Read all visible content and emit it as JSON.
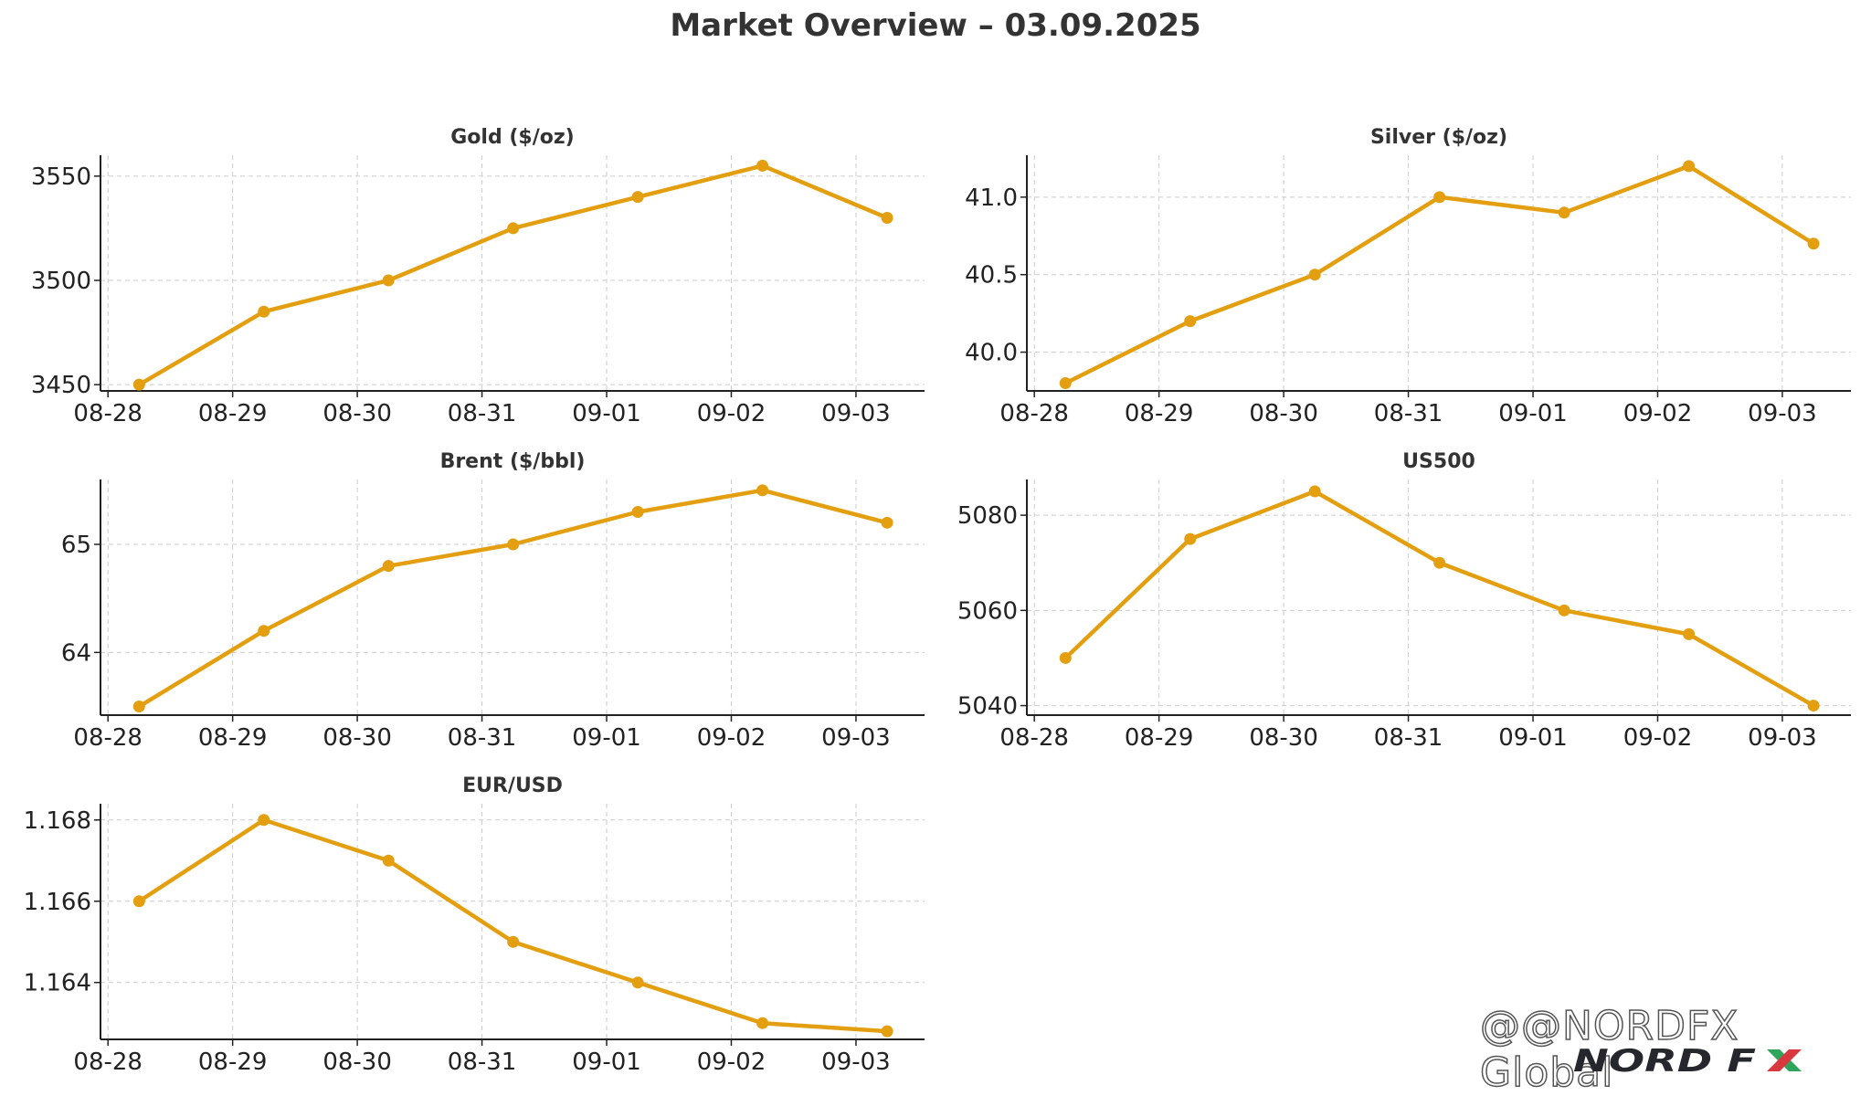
{
  "title": "Market Overview – 03.09.2025",
  "colors": {
    "series": "#e39f0f",
    "grid": "#cccccc",
    "axis": "#222222",
    "logo_dark": "#26262d",
    "logo_green": "#2ea55a",
    "logo_red": "#d9383f"
  },
  "watermark": {
    "handle": "@NORDFX Global",
    "logo_text": "NORD FX",
    "icon": "threads-icon"
  },
  "chart_data": [
    {
      "id": "gold",
      "type": "line",
      "title": "Gold ($/oz)",
      "x_tick_labels": [
        "08-28",
        "08-29",
        "08-30",
        "08-31",
        "09-01",
        "09-02",
        "09-03"
      ],
      "x": [
        "2025-08-28 06:00",
        "2025-08-29 06:00",
        "2025-08-30 06:00",
        "2025-08-31 06:00",
        "2025-09-01 06:00",
        "2025-09-02 06:00",
        "2025-09-03 06:00"
      ],
      "series": [
        {
          "values": [
            3450,
            3485,
            3500,
            3525,
            3540,
            3555,
            3530
          ]
        }
      ],
      "y_ticks": [
        "3450",
        "3500",
        "3550"
      ],
      "y_tick_values": [
        3450,
        3500,
        3550
      ],
      "ylim": [
        3447,
        3560
      ],
      "grid": true
    },
    {
      "id": "silver",
      "type": "line",
      "title": "Silver ($/oz)",
      "x_tick_labels": [
        "08-28",
        "08-29",
        "08-30",
        "08-31",
        "09-01",
        "09-02",
        "09-03"
      ],
      "x": [
        "2025-08-28 06:00",
        "2025-08-29 06:00",
        "2025-08-30 06:00",
        "2025-08-31 06:00",
        "2025-09-01 06:00",
        "2025-09-02 06:00",
        "2025-09-03 06:00"
      ],
      "series": [
        {
          "values": [
            39.8,
            40.2,
            40.5,
            41.0,
            40.9,
            41.2,
            40.7
          ]
        }
      ],
      "y_ticks": [
        "40.0",
        "40.5",
        "41.0"
      ],
      "y_tick_values": [
        40.0,
        40.5,
        41.0
      ],
      "ylim": [
        39.75,
        41.27
      ],
      "grid": true
    },
    {
      "id": "brent",
      "type": "line",
      "title": "Brent ($/bbl)",
      "x_tick_labels": [
        "08-28",
        "08-29",
        "08-30",
        "08-31",
        "09-01",
        "09-02",
        "09-03"
      ],
      "x": [
        "2025-08-28 06:00",
        "2025-08-29 06:00",
        "2025-08-30 06:00",
        "2025-08-31 06:00",
        "2025-09-01 06:00",
        "2025-09-02 06:00",
        "2025-09-03 06:00"
      ],
      "series": [
        {
          "values": [
            63.5,
            64.2,
            64.8,
            65.0,
            65.3,
            65.5,
            65.2
          ]
        }
      ],
      "y_ticks": [
        "64",
        "65"
      ],
      "y_tick_values": [
        64,
        65
      ],
      "ylim": [
        63.42,
        65.6
      ],
      "grid": true
    },
    {
      "id": "us500",
      "type": "line",
      "title": "US500",
      "x_tick_labels": [
        "08-28",
        "08-29",
        "08-30",
        "08-31",
        "09-01",
        "09-02",
        "09-03"
      ],
      "x": [
        "2025-08-28 06:00",
        "2025-08-29 06:00",
        "2025-08-30 06:00",
        "2025-08-31 06:00",
        "2025-09-01 06:00",
        "2025-09-02 06:00",
        "2025-09-03 06:00"
      ],
      "series": [
        {
          "values": [
            5050,
            5075,
            5085,
            5070,
            5060,
            5055,
            5040
          ]
        }
      ],
      "y_ticks": [
        "5040",
        "5060",
        "5080"
      ],
      "y_tick_values": [
        5040,
        5060,
        5080
      ],
      "ylim": [
        5038,
        5087.5
      ],
      "grid": true
    },
    {
      "id": "eurusd",
      "type": "line",
      "title": "EUR/USD",
      "x_tick_labels": [
        "08-28",
        "08-29",
        "08-30",
        "08-31",
        "09-01",
        "09-02",
        "09-03"
      ],
      "x": [
        "2025-08-28 06:00",
        "2025-08-29 06:00",
        "2025-08-30 06:00",
        "2025-08-31 06:00",
        "2025-09-01 06:00",
        "2025-09-02 06:00",
        "2025-09-03 06:00"
      ],
      "series": [
        {
          "values": [
            1.166,
            1.168,
            1.167,
            1.165,
            1.164,
            1.163,
            1.1628
          ]
        }
      ],
      "y_ticks": [
        "1.164",
        "1.166",
        "1.168"
      ],
      "y_tick_values": [
        1.164,
        1.166,
        1.168
      ],
      "ylim": [
        1.1626,
        1.1684
      ],
      "grid": true
    }
  ]
}
